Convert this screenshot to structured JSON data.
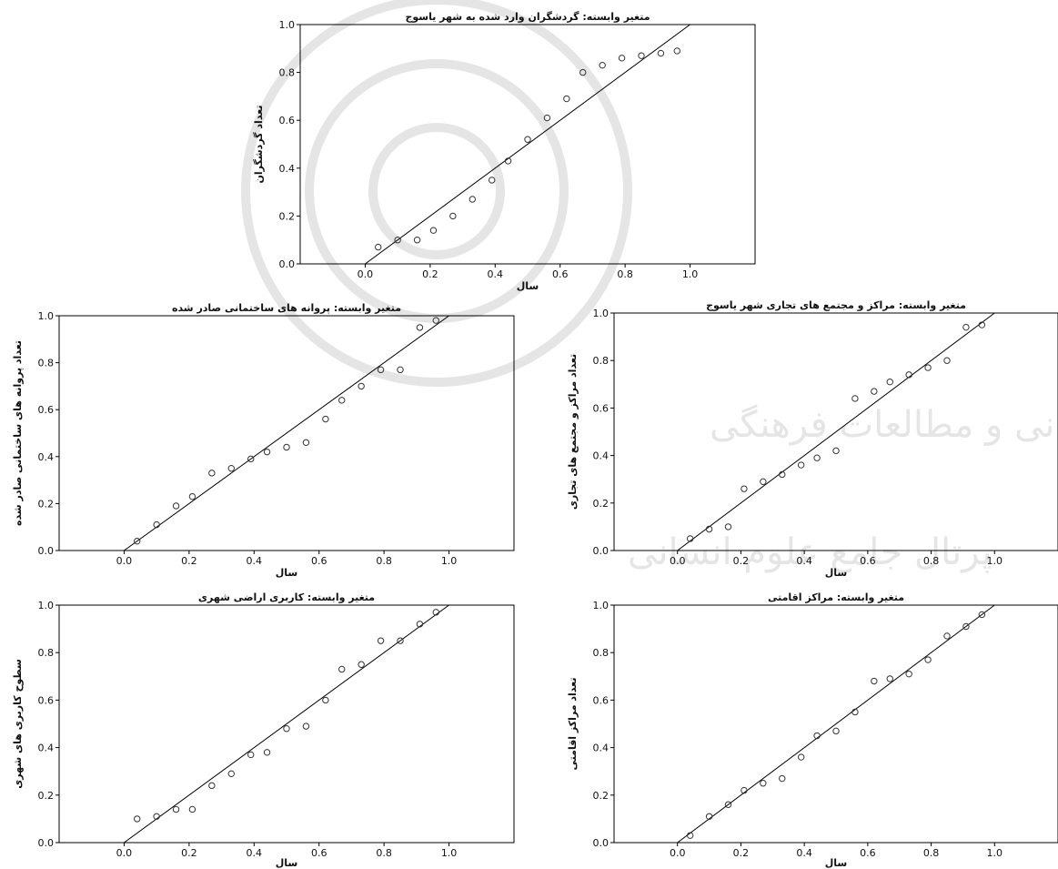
{
  "watermark": {
    "line1": "پژوهشگاه علوم انسانی و مطالعات فرهنگی",
    "line2": "پرتال جامع علوم انسانی"
  },
  "chart_data": [
    {
      "id": "tourists",
      "type": "scatter",
      "title": "متغیر وابسته: گردشگران وارد شده به شهر یاسوج",
      "xlabel": "سال",
      "ylabel": "تعداد گردشگران",
      "xlim": [
        -0.2,
        1.2
      ],
      "ylim": [
        0.0,
        1.0
      ],
      "xticks": [
        "0.0",
        "0.2",
        "0.4",
        "0.6",
        "0.8",
        "1.0"
      ],
      "yticks": [
        "0.0",
        "0.2",
        "0.4",
        "0.6",
        "0.8",
        "1.0"
      ],
      "reference_line": [
        [
          0,
          0
        ],
        [
          1,
          1
        ]
      ],
      "x": [
        0.04,
        0.1,
        0.16,
        0.21,
        0.27,
        0.33,
        0.39,
        0.44,
        0.5,
        0.56,
        0.62,
        0.67,
        0.73,
        0.79,
        0.85,
        0.91,
        0.96
      ],
      "y": [
        0.07,
        0.1,
        0.1,
        0.14,
        0.2,
        0.27,
        0.35,
        0.43,
        0.52,
        0.61,
        0.69,
        0.8,
        0.83,
        0.86,
        0.87,
        0.88,
        0.89
      ]
    },
    {
      "id": "building_permits",
      "type": "scatter",
      "title": "متغیر وابسته: پروانه های ساختمانی صادر شده",
      "xlabel": "سال",
      "ylabel": "تعداد پروانه های ساختمانی صادر شده",
      "xlim": [
        -0.2,
        1.2
      ],
      "ylim": [
        0.0,
        1.0
      ],
      "xticks": [
        "0.0",
        "0.2",
        "0.4",
        "0.6",
        "0.8",
        "1.0"
      ],
      "yticks": [
        "0.0",
        "0.2",
        "0.4",
        "0.6",
        "0.8",
        "1.0"
      ],
      "reference_line": [
        [
          0,
          0
        ],
        [
          1,
          1
        ]
      ],
      "x": [
        0.04,
        0.1,
        0.16,
        0.21,
        0.27,
        0.33,
        0.39,
        0.44,
        0.5,
        0.56,
        0.62,
        0.67,
        0.73,
        0.79,
        0.85,
        0.91,
        0.96
      ],
      "y": [
        0.04,
        0.11,
        0.19,
        0.23,
        0.33,
        0.35,
        0.39,
        0.42,
        0.44,
        0.46,
        0.56,
        0.64,
        0.7,
        0.77,
        0.77,
        0.95,
        0.98
      ]
    },
    {
      "id": "commercial_centers",
      "type": "scatter",
      "title": "متغیر وابسته: مراکز و مجتمع های تجاری شهر یاسوج",
      "xlabel": "سال",
      "ylabel": "تعداد مراکز و مجتمع های تجاری",
      "xlim": [
        -0.2,
        1.2
      ],
      "ylim": [
        0.0,
        1.0
      ],
      "xticks": [
        "0.0",
        "0.2",
        "0.4",
        "0.6",
        "0.8",
        "1.0"
      ],
      "yticks": [
        "0.0",
        "0.2",
        "0.4",
        "0.6",
        "0.8",
        "1.0"
      ],
      "reference_line": [
        [
          0,
          0
        ],
        [
          1,
          1
        ]
      ],
      "x": [
        0.04,
        0.1,
        0.16,
        0.21,
        0.27,
        0.33,
        0.39,
        0.44,
        0.5,
        0.56,
        0.62,
        0.67,
        0.73,
        0.79,
        0.85,
        0.91,
        0.96
      ],
      "y": [
        0.05,
        0.09,
        0.1,
        0.26,
        0.29,
        0.32,
        0.36,
        0.39,
        0.42,
        0.64,
        0.67,
        0.71,
        0.74,
        0.77,
        0.8,
        0.94,
        0.95
      ]
    },
    {
      "id": "land_use",
      "type": "scatter",
      "title": "متغیر وابسته: کاربری اراضی شهری",
      "xlabel": "سال",
      "ylabel": "سطوح کاربری های شهری",
      "xlim": [
        -0.2,
        1.2
      ],
      "ylim": [
        0.0,
        1.0
      ],
      "xticks": [
        "0.0",
        "0.2",
        "0.4",
        "0.6",
        "0.8",
        "1.0"
      ],
      "yticks": [
        "0.0",
        "0.2",
        "0.4",
        "0.6",
        "0.8",
        "1.0"
      ],
      "reference_line": [
        [
          0,
          0
        ],
        [
          1,
          1
        ]
      ],
      "x": [
        0.04,
        0.1,
        0.16,
        0.21,
        0.27,
        0.33,
        0.39,
        0.44,
        0.5,
        0.56,
        0.62,
        0.67,
        0.73,
        0.79,
        0.85,
        0.91,
        0.96
      ],
      "y": [
        0.1,
        0.11,
        0.14,
        0.14,
        0.24,
        0.29,
        0.37,
        0.38,
        0.48,
        0.49,
        0.6,
        0.73,
        0.75,
        0.85,
        0.85,
        0.92,
        0.97
      ]
    },
    {
      "id": "accommodation",
      "type": "scatter",
      "title": "متغیر وابسته: مراکز اقامتی",
      "xlabel": "سال",
      "ylabel": "تعداد مراکز اقامتی",
      "xlim": [
        -0.2,
        1.2
      ],
      "ylim": [
        0.0,
        1.0
      ],
      "xticks": [
        "0.0",
        "0.2",
        "0.4",
        "0.6",
        "0.8",
        "1.0"
      ],
      "yticks": [
        "0.0",
        "0.2",
        "0.4",
        "0.6",
        "0.8",
        "1.0"
      ],
      "reference_line": [
        [
          0,
          0
        ],
        [
          1,
          1
        ]
      ],
      "x": [
        0.04,
        0.1,
        0.16,
        0.21,
        0.27,
        0.33,
        0.39,
        0.44,
        0.5,
        0.56,
        0.62,
        0.67,
        0.73,
        0.79,
        0.85,
        0.91,
        0.96
      ],
      "y": [
        0.03,
        0.11,
        0.16,
        0.22,
        0.25,
        0.27,
        0.36,
        0.45,
        0.47,
        0.55,
        0.68,
        0.69,
        0.71,
        0.77,
        0.87,
        0.91,
        0.96
      ]
    }
  ]
}
